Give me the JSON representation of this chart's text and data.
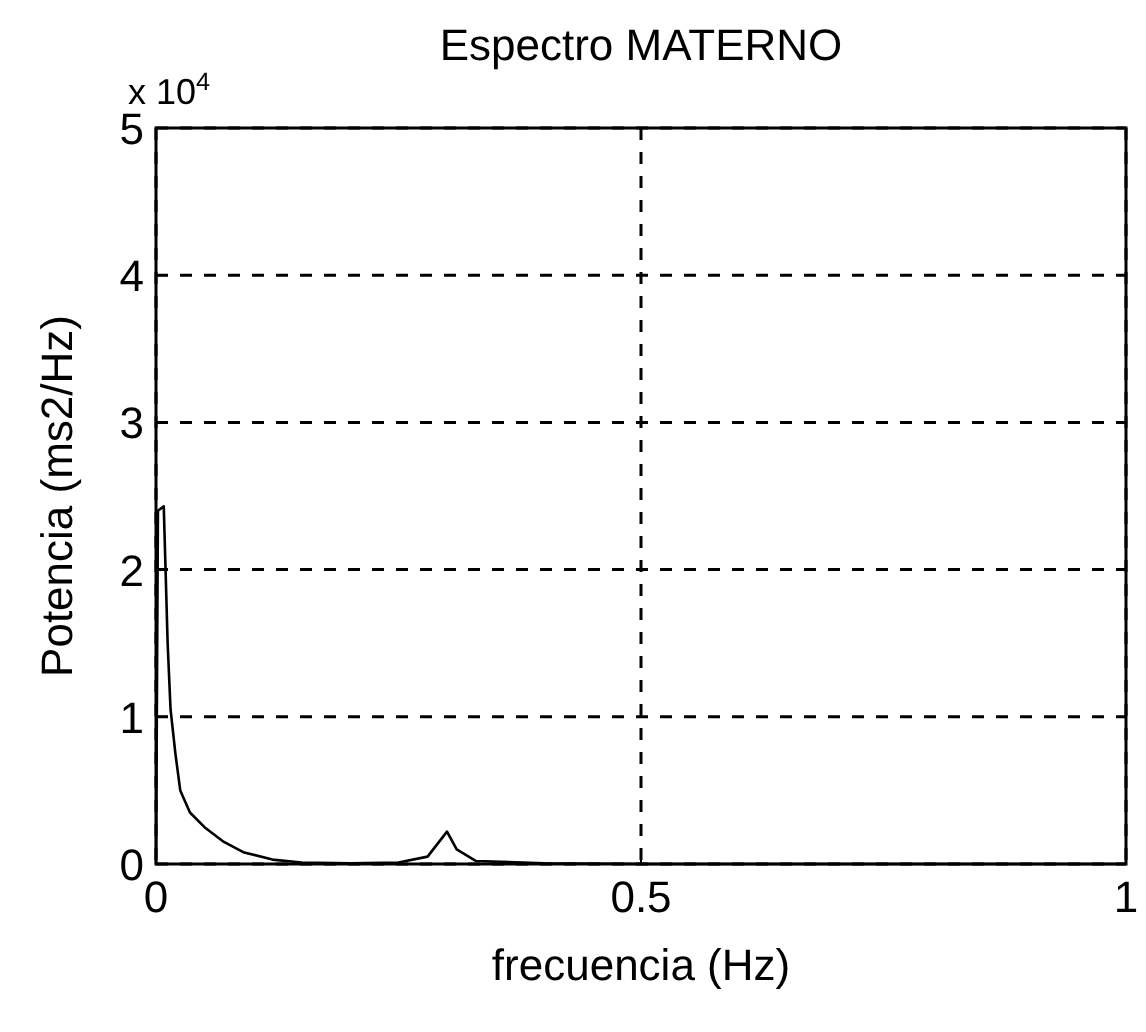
{
  "chart_data": {
    "type": "line",
    "title": "Espectro MATERNO",
    "xlabel": "frecuencia (Hz)",
    "ylabel": "Potencia (ms2/Hz)",
    "annotations": [
      "x 10$^{4}$"
    ],
    "x": [
      0,
      0.002,
      0.008,
      0.012,
      0.015,
      0.02,
      0.025,
      0.035,
      0.05,
      0.07,
      0.09,
      0.12,
      0.15,
      0.2,
      0.25,
      0.28,
      0.3,
      0.31,
      0.33,
      0.4,
      0.5,
      0.6,
      0.8,
      1
    ],
    "series": [
      {
        "color": "#000000",
        "values": [
          0,
          2.4,
          2.43,
          1.5,
          1.05,
          0.75,
          0.5,
          0.35,
          0.25,
          0.15,
          0.08,
          0.03,
          0.01,
          0.005,
          0.01,
          0.05,
          0.22,
          0.1,
          0.02,
          0.005,
          0,
          0,
          0,
          0
        ]
      }
    ],
    "xlim": [
      0,
      1
    ],
    "xticks": [
      0,
      0.5,
      1
    ],
    "ylim": [
      0,
      5
    ],
    "yticks": [
      0,
      1,
      2,
      3,
      4,
      5
    ],
    "grid": true,
    "line_style": "solid"
  }
}
